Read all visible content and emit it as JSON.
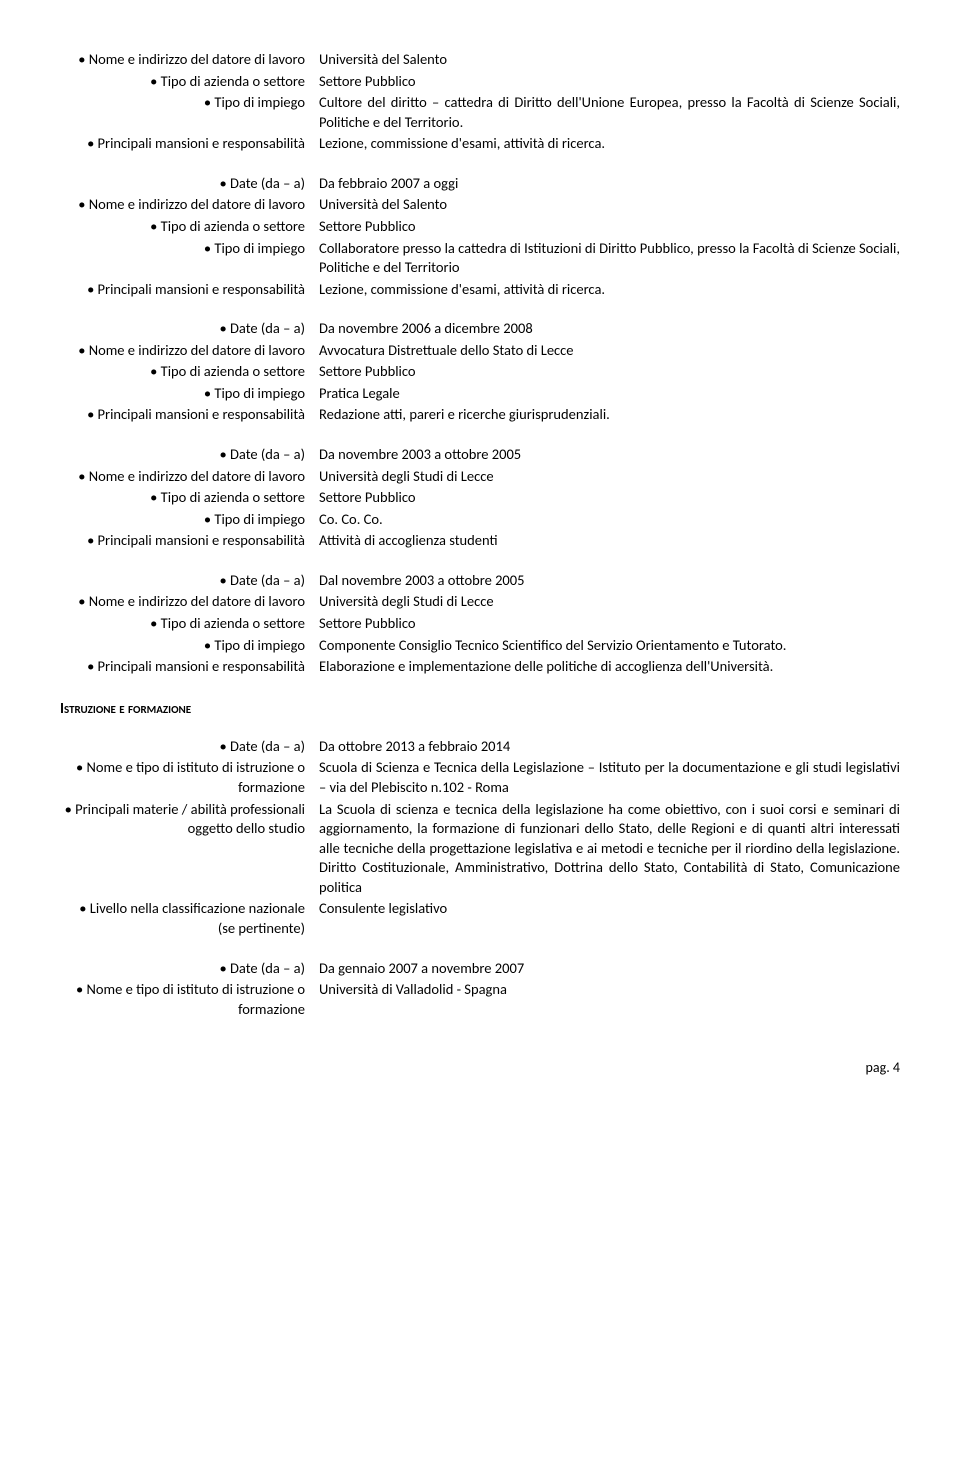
{
  "blocks": [
    {
      "rows": [
        {
          "label": "• Nome e indirizzo del datore di lavoro",
          "value": "Università del Salento"
        },
        {
          "label": "• Tipo di azienda o settore",
          "value": "Settore Pubblico"
        },
        {
          "label": "• Tipo di impiego",
          "value": "Cultore del diritto – cattedra di Diritto dell'Unione Europea, presso la Facoltà di Scienze Sociali, Politiche e del Territorio."
        },
        {
          "label": "• Principali mansioni e responsabilità",
          "value": "Lezione, commissione d'esami, attività di ricerca."
        }
      ]
    },
    {
      "rows": [
        {
          "label": "• Date (da – a)",
          "value": "Da febbraio 2007 a oggi"
        },
        {
          "label": "• Nome e indirizzo del datore di lavoro",
          "value": "Università del Salento"
        },
        {
          "label": "• Tipo di azienda o settore",
          "value": "Settore Pubblico"
        },
        {
          "label": "• Tipo di impiego",
          "value": "Collaboratore presso la cattedra di Istituzioni di Diritto Pubblico, presso la Facoltà di Scienze Sociali, Politiche e del Territorio"
        },
        {
          "label": "• Principali mansioni e responsabilità",
          "value": "Lezione, commissione d'esami, attività di ricerca."
        }
      ]
    },
    {
      "rows": [
        {
          "label": "• Date (da – a)",
          "value": "Da novembre 2006 a dicembre 2008"
        },
        {
          "label": "• Nome e indirizzo del datore di lavoro",
          "value": "Avvocatura Distrettuale dello Stato di Lecce"
        },
        {
          "label": "• Tipo di azienda o settore",
          "value": "Settore Pubblico"
        },
        {
          "label": "• Tipo di impiego",
          "value": "Pratica Legale"
        },
        {
          "label": "• Principali mansioni e responsabilità",
          "value": "Redazione atti, pareri e ricerche giurisprudenziali."
        }
      ]
    },
    {
      "rows": [
        {
          "label": "• Date (da – a)",
          "value": "Da novembre 2003 a ottobre 2005"
        },
        {
          "label": "• Nome e indirizzo del datore di lavoro",
          "value": "Università degli Studi di Lecce"
        },
        {
          "label": "• Tipo di azienda o settore",
          "value": "Settore Pubblico"
        },
        {
          "label": "• Tipo di impiego",
          "value": "Co. Co. Co."
        },
        {
          "label": "• Principali mansioni e responsabilità",
          "value": "Attività di accoglienza studenti"
        }
      ]
    },
    {
      "rows": [
        {
          "label": "• Date (da – a)",
          "value": "Dal novembre 2003 a ottobre 2005"
        },
        {
          "label": "• Nome e indirizzo del datore di lavoro",
          "value": "Università degli Studi di Lecce"
        },
        {
          "label": "• Tipo di azienda o settore",
          "value": "Settore Pubblico"
        },
        {
          "label": "• Tipo di impiego",
          "value": "Componente Consiglio Tecnico Scientifico del Servizio Orientamento e Tutorato."
        },
        {
          "label": "• Principali mansioni e responsabilità",
          "value": "Elaborazione e implementazione delle politiche di accoglienza dell'Università."
        }
      ]
    }
  ],
  "eduHeader": "Istruzione e formazione",
  "eduBlocks": [
    {
      "rows": [
        {
          "label": "• Date (da – a)",
          "value": "Da ottobre 2013 a febbraio 2014"
        },
        {
          "label": "• Nome e tipo di istituto di istruzione o formazione",
          "value": "Scuola di Scienza e Tecnica della Legislazione – Istituto per la documentazione e gli studi legislativi – via del Plebiscito n.102 - Roma"
        },
        {
          "label": "• Principali materie / abilità professionali oggetto dello studio",
          "value": "La Scuola di scienza e tecnica della legislazione ha come obiettivo, con i suoi corsi e seminari di aggiornamento, la formazione di funzionari dello Stato, delle Regioni e di quanti altri interessati alle tecniche della progettazione legislativa e ai metodi e tecniche per il riordino della legislazione. Diritto Costituzionale, Amministrativo, Dottrina dello Stato, Contabilità di Stato, Comunicazione politica"
        },
        {
          "label": "• Livello nella classificazione nazionale (se pertinente)",
          "value": "Consulente legislativo"
        }
      ]
    },
    {
      "rows": [
        {
          "label": "• Date (da – a)",
          "value": "Da gennaio 2007 a novembre 2007"
        },
        {
          "label": "• Nome e tipo di istituto di istruzione o formazione",
          "value": "Università di Valladolid - Spagna"
        }
      ]
    }
  ],
  "footer": "pag. 4"
}
